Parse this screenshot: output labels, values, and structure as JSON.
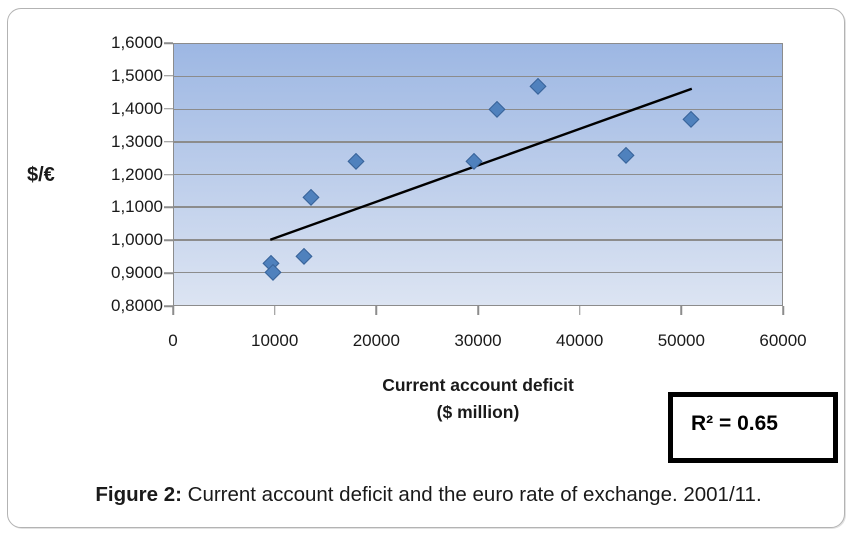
{
  "figure": {
    "caption_bold": "Figure 2:",
    "caption_rest": " Current account deficit and the euro rate of exchange. 2001/11."
  },
  "chart_data": {
    "type": "scatter",
    "title": "",
    "ylabel": "$/€",
    "xlabel_line1": "Current account deficit",
    "xlabel_line2": "($ million)",
    "xlim": [
      0,
      60000
    ],
    "ylim": [
      0.8,
      1.6
    ],
    "x_ticks": [
      0,
      10000,
      20000,
      30000,
      40000,
      50000,
      60000
    ],
    "x_tick_labels": [
      "0",
      "10000",
      "20000",
      "30000",
      "40000",
      "50000",
      "60000"
    ],
    "y_ticks": [
      1.6,
      1.5,
      1.4,
      1.3,
      1.2,
      1.1,
      1.0,
      0.9,
      0.8
    ],
    "y_tick_labels": [
      "1,6000",
      "1,5000",
      "1,4000",
      "1,3000",
      "1,2000",
      "1,1000",
      "1,0000",
      "0,9000",
      "0,8000"
    ],
    "grid": "horizontal",
    "legend_position": "none",
    "series_name": "current-account-deficit-vs-euro-rate",
    "points": [
      [
        9600,
        0.93
      ],
      [
        9800,
        0.9
      ],
      [
        12800,
        0.95
      ],
      [
        13500,
        1.13
      ],
      [
        18000,
        1.24
      ],
      [
        29600,
        1.24
      ],
      [
        31900,
        1.4
      ],
      [
        35900,
        1.47
      ],
      [
        44600,
        1.26
      ],
      [
        51000,
        1.37
      ]
    ],
    "trendline": {
      "x1": 9500,
      "y1": 1.0,
      "x2": 51100,
      "y2": 1.463
    },
    "r_squared": 0.65,
    "r_squared_label": "R² = 0.65",
    "colors": {
      "plot_bg_top": "#9db7e3",
      "plot_bg_bottom": "#dce4f2",
      "gridline": "#8c8c8c",
      "marker_fill": "#4f81bd",
      "marker_edge": "#396399",
      "trendline": "#000000"
    }
  }
}
